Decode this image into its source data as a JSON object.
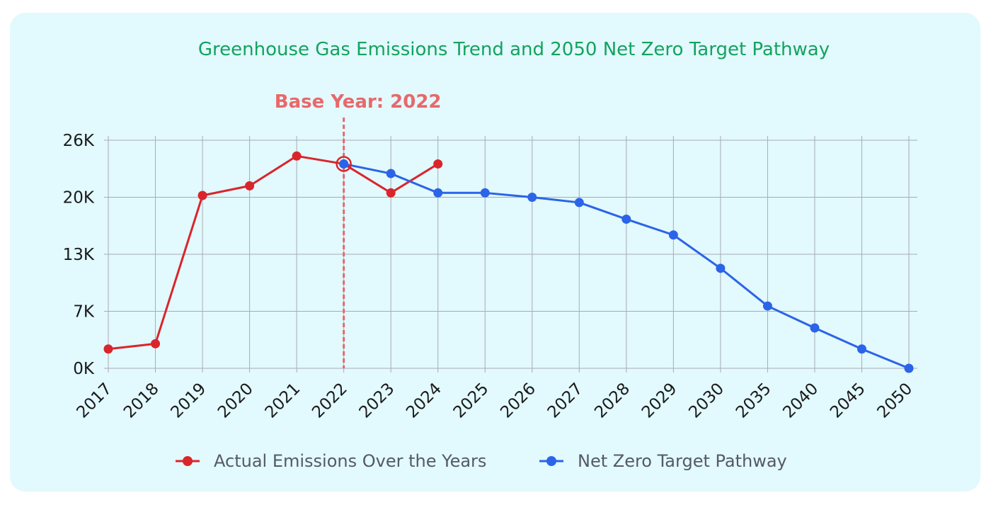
{
  "chart_data": {
    "type": "line",
    "title": "Greenhouse Gas Emissions Trend and 2050 Net Zero Target Pathway",
    "categories": [
      "2017",
      "2018",
      "2019",
      "2020",
      "2021",
      "2022",
      "2023",
      "2024",
      "2025",
      "2026",
      "2027",
      "2028",
      "2029",
      "2030",
      "2035",
      "2040",
      "2045",
      "2050"
    ],
    "y_ticks": [
      {
        "value": 0,
        "label": "0K"
      },
      {
        "value": 6500,
        "label": "7K"
      },
      {
        "value": 13000,
        "label": "13K"
      },
      {
        "value": 19500,
        "label": "20K"
      },
      {
        "value": 26000,
        "label": "26K"
      }
    ],
    "ylim": [
      0,
      26000
    ],
    "grid": true,
    "series": [
      {
        "name": "Actual Emissions Over the Years",
        "color": "#d9252b",
        "values": [
          2200,
          2800,
          19700,
          20800,
          24200,
          23300,
          20000,
          23300,
          null,
          null,
          null,
          null,
          null,
          null,
          null,
          null,
          null,
          null
        ]
      },
      {
        "name": "Net Zero Target Pathway",
        "color": "#2b64e8",
        "values": [
          null,
          null,
          null,
          null,
          null,
          23300,
          22200,
          20000,
          20000,
          19500,
          18900,
          17000,
          15200,
          11400,
          7100,
          4600,
          2200,
          0
        ]
      }
    ],
    "annotation": {
      "label": "Base Year: 2022",
      "category": "2022",
      "color": "#e8686b"
    },
    "legend_position": "bottom"
  }
}
